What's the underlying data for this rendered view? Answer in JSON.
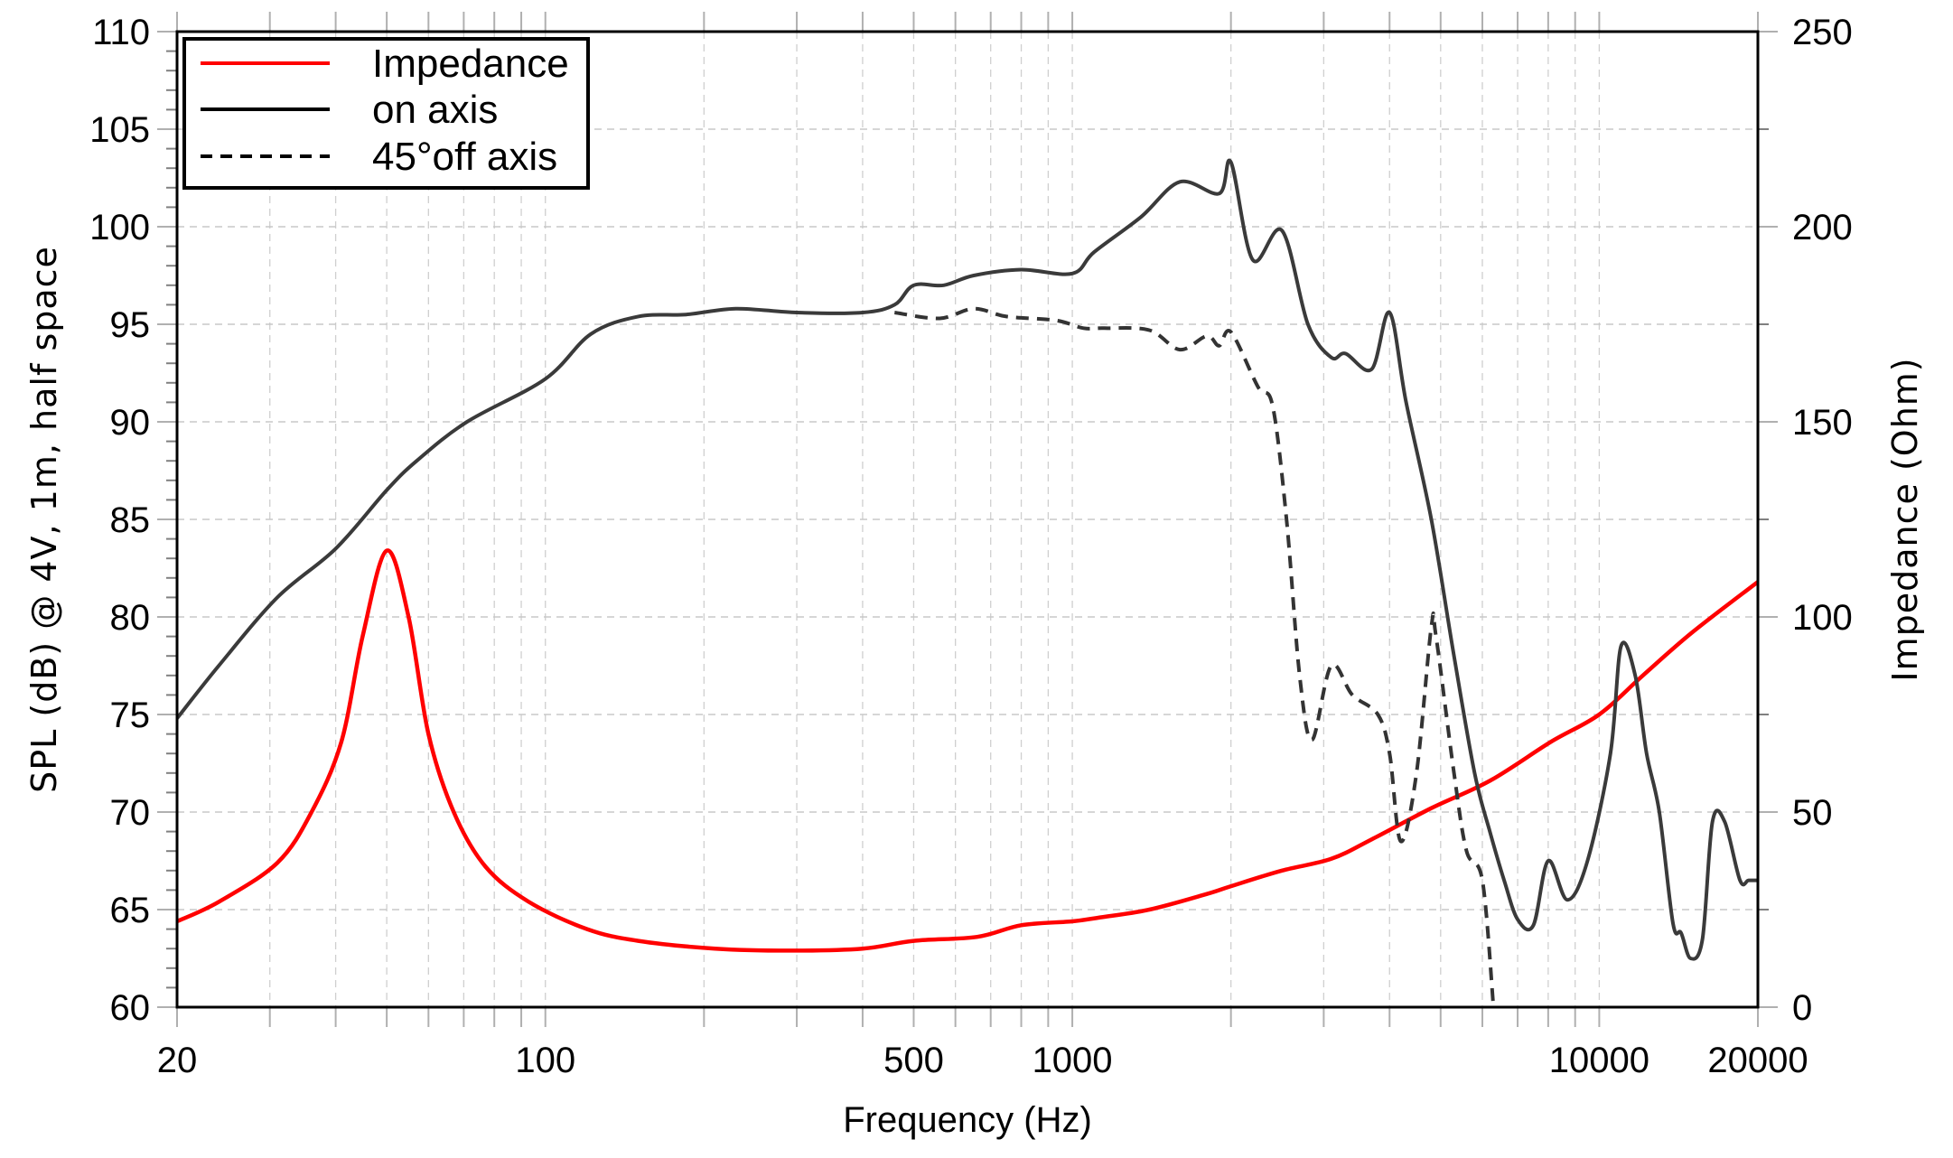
{
  "chart_data": {
    "type": "line",
    "title": "",
    "xlabel": "Frequency (Hz)",
    "ylabel": "SPL (dB) @ 4V, 1m, half space",
    "y2label": "Impedance (Ohm)",
    "xscale": "log",
    "xlim": [
      20,
      20000
    ],
    "ylim": [
      60,
      110
    ],
    "y2lim": [
      0,
      250
    ],
    "grid": true,
    "legend_position": "upper left",
    "x_ticks": [
      20,
      100,
      500,
      1000,
      10000,
      20000
    ],
    "x_tick_labels": [
      "20",
      "100",
      "500",
      "1000",
      "10000",
      "20000"
    ],
    "y_ticks": [
      60,
      65,
      70,
      75,
      80,
      85,
      90,
      95,
      100,
      105,
      110
    ],
    "y_tick_labels": [
      "60",
      "65",
      "70",
      "75",
      "80",
      "85",
      "90",
      "95",
      "100",
      "105",
      "110"
    ],
    "y2_ticks": [
      0,
      50,
      100,
      150,
      200,
      250
    ],
    "y2_tick_labels": [
      "0",
      "50",
      "100",
      "150",
      "200",
      "250"
    ],
    "series": [
      {
        "name": "Impedance",
        "axis": "right",
        "color": "#ff0000",
        "style": "solid",
        "x": [
          20,
          24,
          31,
          36,
          41,
          45,
          50,
          55,
          60,
          67,
          77,
          93,
          120,
          150,
          210,
          290,
          400,
          500,
          660,
          800,
          1000,
          1130,
          1400,
          1800,
          2000,
          2500,
          3100,
          3700,
          4800,
          6200,
          8100,
          10000,
          12100,
          15000,
          20000
        ],
        "values": [
          22,
          27,
          37,
          50,
          68,
          95,
          117,
          100,
          70,
          50,
          36,
          27,
          20,
          17,
          15,
          14.5,
          15,
          17,
          18,
          21,
          22,
          23,
          25,
          29,
          31,
          35,
          38,
          43,
          51,
          58,
          68,
          75,
          85,
          96,
          109
        ]
      },
      {
        "name": "on axis",
        "axis": "left",
        "color": "#000000",
        "style": "solid",
        "x": [
          20,
          24,
          31,
          40,
          50,
          57,
          71,
          100,
          122,
          150,
          185,
          230,
          300,
          400,
          460,
          500,
          570,
          650,
          800,
          1000,
          1100,
          1350,
          1600,
          1900,
          2000,
          2200,
          2500,
          2800,
          3100,
          3300,
          3700,
          4000,
          4300,
          4800,
          5300,
          5800,
          6200,
          6600,
          7000,
          7500,
          8000,
          8700,
          9500,
          10500,
          11000,
          11700,
          12300,
          13000,
          13800,
          14300,
          14900,
          15700,
          16400,
          17300,
          18500,
          19200,
          20000
        ],
        "values": [
          74.8,
          77.5,
          81,
          83.5,
          86.5,
          88,
          90,
          92.2,
          94.5,
          95.4,
          95.5,
          95.8,
          95.6,
          95.6,
          96,
          97,
          97,
          97.5,
          97.8,
          97.6,
          98.7,
          100.5,
          102.3,
          101.7,
          103.3,
          98.3,
          99.8,
          95,
          93.3,
          93.5,
          92.7,
          95.6,
          91,
          85,
          78,
          72,
          69,
          66.5,
          64.5,
          64.2,
          67.5,
          65.5,
          67.5,
          73,
          78.5,
          77,
          73,
          70,
          64.3,
          63.8,
          62.5,
          63.5,
          69.5,
          69.5,
          66.5,
          66.5,
          66.5
        ]
      },
      {
        "name": "45°off axis",
        "axis": "left",
        "color": "#000000",
        "style": "dashed",
        "x": [
          460,
          560,
          650,
          750,
          930,
          1050,
          1150,
          1400,
          1600,
          1800,
          1900,
          2000,
          2250,
          2400,
          2550,
          2700,
          2850,
          3100,
          3400,
          3800,
          4000,
          4200,
          4500,
          4800,
          4900,
          5300,
          5600,
          6000,
          6300
        ],
        "values": [
          95.6,
          95.3,
          95.8,
          95.4,
          95.2,
          94.8,
          94.8,
          94.7,
          93.7,
          94.4,
          93.9,
          94.6,
          91.8,
          90.8,
          85,
          77,
          73.7,
          77.5,
          76,
          75,
          73,
          68.5,
          72,
          79.5,
          79,
          72,
          68,
          66.5,
          60
        ]
      }
    ]
  },
  "legend": {
    "items": [
      {
        "label": "Impedance",
        "color": "#ff0000",
        "style": "solid"
      },
      {
        "label": "on axis",
        "color": "#000000",
        "style": "solid"
      },
      {
        "label": "45°off axis",
        "color": "#000000",
        "style": "dashed"
      }
    ]
  },
  "axes": {
    "xlabel": "Frequency (Hz)",
    "ylabel": "SPL (dB) @ 4V, 1m, half space",
    "y2label": "Impedance (Ohm)"
  }
}
